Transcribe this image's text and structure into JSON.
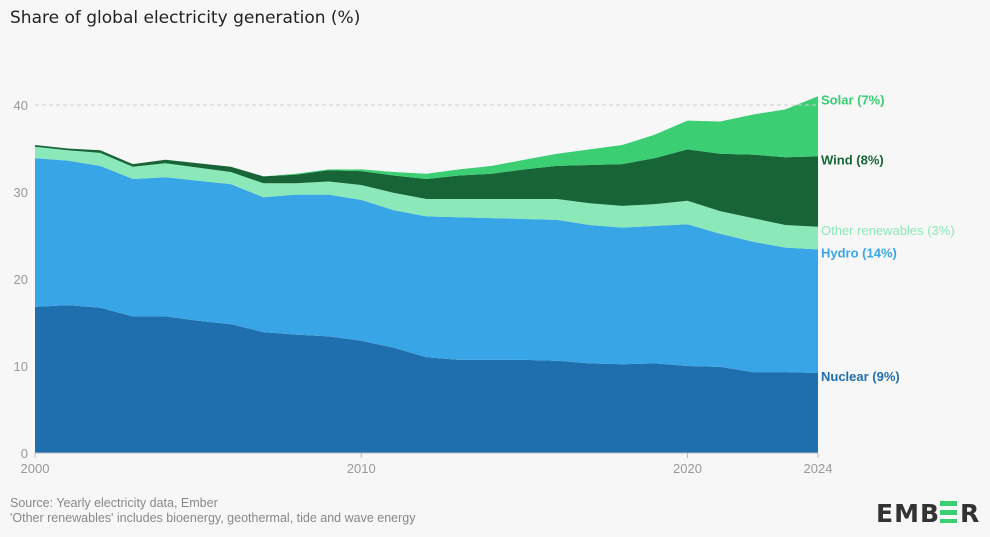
{
  "chart_data": {
    "type": "area",
    "stacked": true,
    "title": "Share of global electricity generation (%)",
    "x": [
      2000,
      2001,
      2002,
      2003,
      2004,
      2005,
      2006,
      2007,
      2008,
      2009,
      2010,
      2011,
      2012,
      2013,
      2014,
      2015,
      2016,
      2017,
      2018,
      2019,
      2020,
      2021,
      2022,
      2023,
      2024
    ],
    "xticks": [
      "2000",
      "2010",
      "2020",
      "2024"
    ],
    "yticks": [
      "0",
      "10",
      "20",
      "30",
      "40"
    ],
    "ylim": [
      0,
      42
    ],
    "grid": false,
    "reference_line": {
      "y": 40,
      "style": "dashed"
    },
    "series": [
      {
        "name": "Nuclear",
        "label": "Nuclear (9%)",
        "color": "#1f6ead",
        "values": [
          16.8,
          17.0,
          16.7,
          15.7,
          15.7,
          15.2,
          14.8,
          13.9,
          13.6,
          13.4,
          12.9,
          12.1,
          11.0,
          10.7,
          10.7,
          10.7,
          10.6,
          10.3,
          10.2,
          10.3,
          10.0,
          9.9,
          9.3,
          9.3,
          9.2
        ]
      },
      {
        "name": "Hydro",
        "label": "Hydro (14%)",
        "color": "#38a6e6",
        "values": [
          17.1,
          16.6,
          16.3,
          15.8,
          16.0,
          16.1,
          16.1,
          15.5,
          16.1,
          16.3,
          16.2,
          15.8,
          16.2,
          16.4,
          16.3,
          16.2,
          16.2,
          15.9,
          15.7,
          15.8,
          16.3,
          15.3,
          15.0,
          14.3,
          14.2
        ]
      },
      {
        "name": "Other renewables",
        "label": "Other renewables (3%)",
        "color": "#8be8b8",
        "values": [
          1.3,
          1.2,
          1.5,
          1.4,
          1.6,
          1.5,
          1.4,
          1.6,
          1.3,
          1.5,
          1.7,
          2.0,
          2.0,
          2.1,
          2.2,
          2.3,
          2.4,
          2.5,
          2.5,
          2.5,
          2.7,
          2.6,
          2.7,
          2.6,
          2.6
        ]
      },
      {
        "name": "Wind",
        "label": "Wind (8%)",
        "color": "#176537",
        "values": [
          0.2,
          0.2,
          0.3,
          0.3,
          0.4,
          0.5,
          0.6,
          0.8,
          1.0,
          1.3,
          1.6,
          2.0,
          2.3,
          2.7,
          2.9,
          3.4,
          3.8,
          4.4,
          4.8,
          5.3,
          5.9,
          6.6,
          7.3,
          7.8,
          8.1
        ]
      },
      {
        "name": "Solar",
        "label": "Solar (7%)",
        "color": "#3bce73",
        "values": [
          0.0,
          0.0,
          0.0,
          0.0,
          0.0,
          0.0,
          0.0,
          0.0,
          0.1,
          0.1,
          0.2,
          0.4,
          0.6,
          0.7,
          0.9,
          1.1,
          1.4,
          1.8,
          2.2,
          2.7,
          3.3,
          3.7,
          4.6,
          5.5,
          6.9
        ]
      }
    ]
  },
  "footer": {
    "source": "Source: Yearly electricity data, Ember",
    "note": "'Other renewables' includes bioenergy, geothermal, tide and wave energy"
  },
  "logo": {
    "text": "EMBER",
    "accent": "#3bce73"
  }
}
